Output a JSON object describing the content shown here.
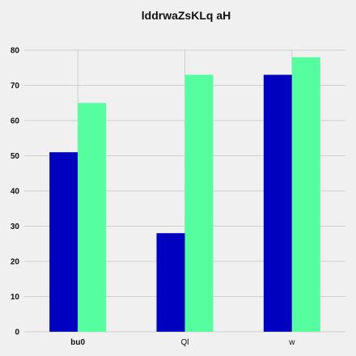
{
  "chart_data": {
    "type": "bar",
    "title": "lddrwaZsKLq aH",
    "xlabel": "",
    "ylabel": "",
    "categories": [
      "bu0",
      "Ql",
      "w"
    ],
    "series": [
      {
        "values": [
          51,
          28,
          73
        ],
        "color": "#0000c0"
      },
      {
        "values": [
          65,
          73,
          78
        ],
        "color": "#55ffa0"
      }
    ],
    "ylim": [
      0,
      80
    ],
    "yticks": [
      0,
      10,
      20,
      30,
      40,
      50,
      60,
      70,
      80
    ],
    "grid": true,
    "legend": "none",
    "bold_categories": [
      "bu0"
    ]
  }
}
